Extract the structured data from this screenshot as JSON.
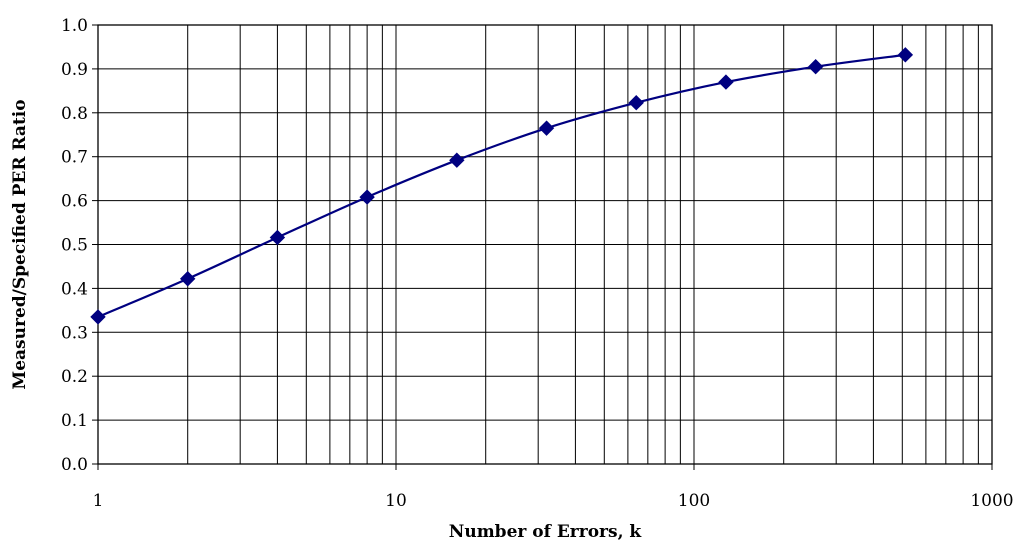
{
  "chart_data": {
    "type": "line",
    "title": "",
    "xlabel": "Number of Errors, k",
    "ylabel": "Measured/Specified PER Ratio",
    "x_scale": "log",
    "xlim": [
      1,
      1000
    ],
    "ylim": [
      0,
      1
    ],
    "x_ticks": [
      1,
      10,
      100,
      1000
    ],
    "x_tick_labels": [
      "1",
      "10",
      "100",
      "1000"
    ],
    "y_ticks": [
      0,
      0.1,
      0.2,
      0.3,
      0.4,
      0.5,
      0.6,
      0.7,
      0.8,
      0.9,
      1.0
    ],
    "y_tick_labels": [
      "0.0",
      "0.1",
      "0.2",
      "0.3",
      "0.4",
      "0.5",
      "0.6",
      "0.7",
      "0.8",
      "0.9",
      "1.0"
    ],
    "grid": true,
    "legend": "none",
    "marker": "diamond",
    "series": [
      {
        "name": "",
        "color": "#000080",
        "x": [
          1,
          2,
          4,
          8,
          16,
          32,
          64,
          128,
          256,
          512
        ],
        "y": [
          0.335,
          0.422,
          0.516,
          0.608,
          0.692,
          0.765,
          0.823,
          0.87,
          0.905,
          0.932
        ]
      }
    ]
  }
}
